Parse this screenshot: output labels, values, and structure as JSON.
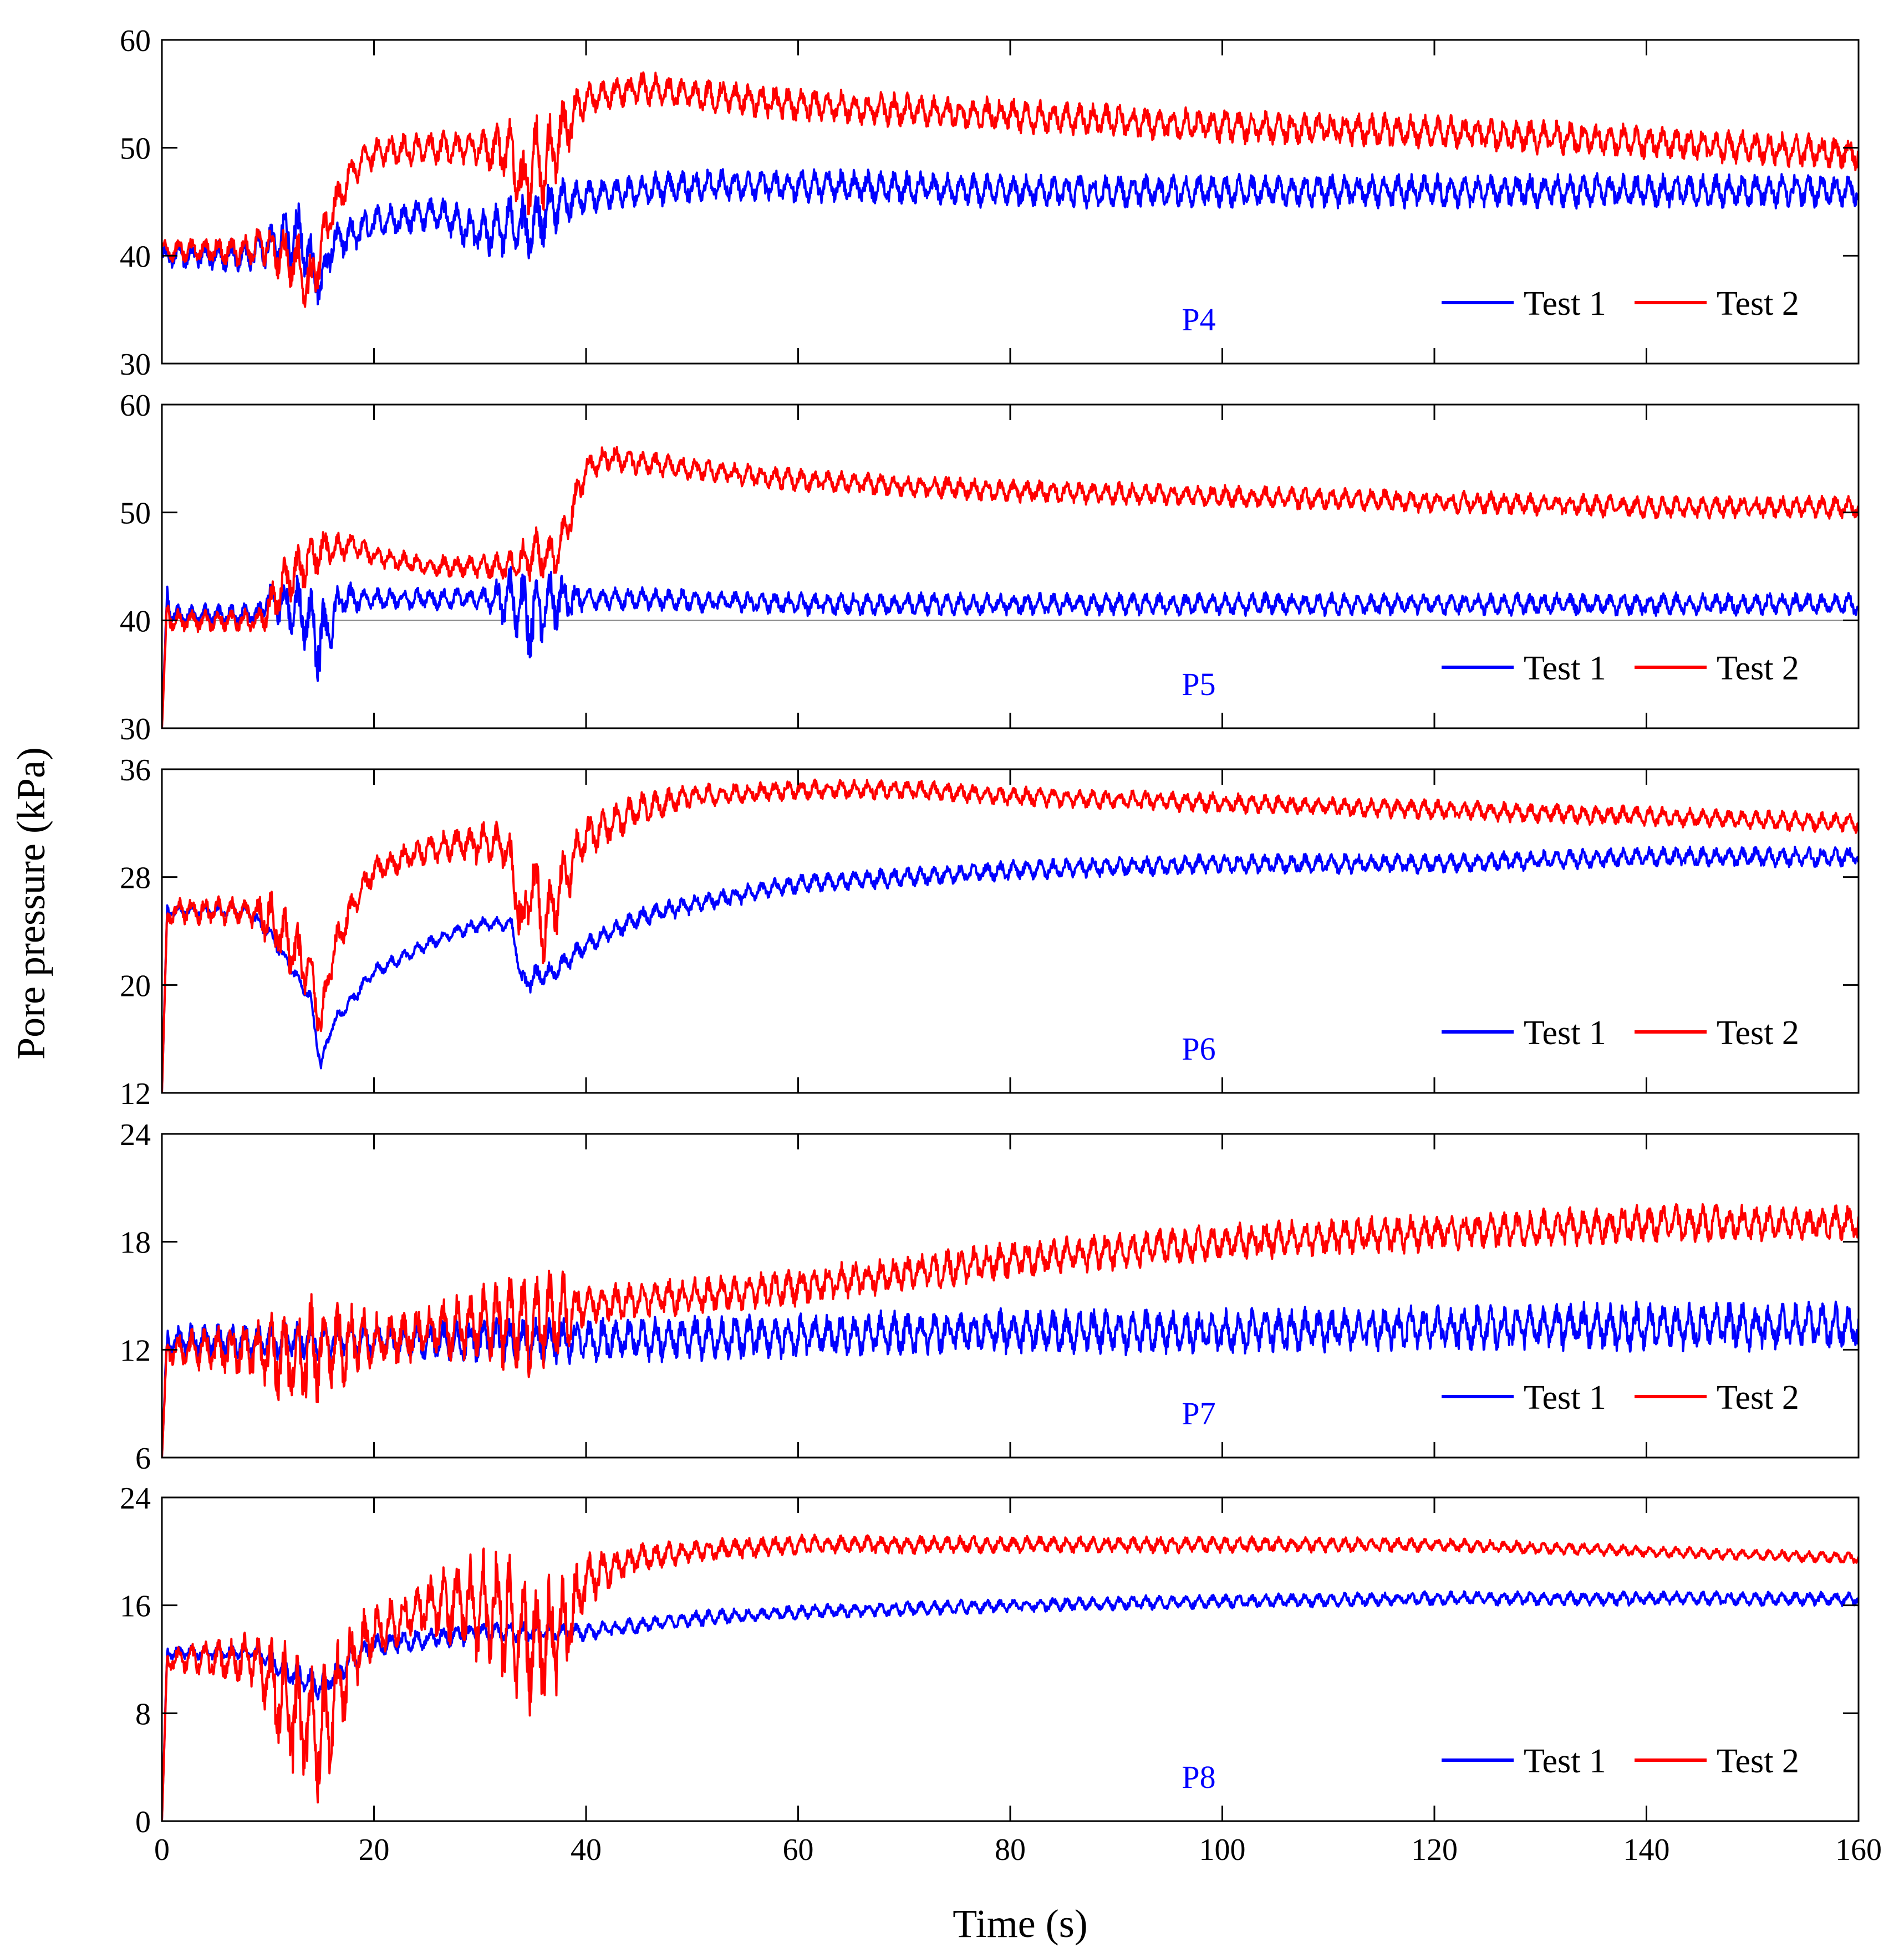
{
  "figure": {
    "ylabel": "Pore pressure (kPa)",
    "xlabel": "Time (s)"
  },
  "colors": {
    "test1": "#0000ff",
    "test2": "#ff0000",
    "panel_label": "#0000ff",
    "axis": "#000000"
  },
  "chart_data": [
    {
      "type": "line",
      "panel": "P4",
      "title": "P4",
      "xlabel": "",
      "ylabel": "",
      "xlim": [
        0,
        160
      ],
      "ylim": [
        30,
        60
      ],
      "xticks": [
        0,
        20,
        40,
        60,
        80,
        100,
        120,
        140,
        160
      ],
      "yticks": [
        30,
        40,
        50,
        60
      ],
      "legend": "bottom-right",
      "series": [
        {
          "name": "Test 1",
          "x": [
            0,
            8,
            10,
            13,
            15,
            16,
            20,
            26,
            30,
            33,
            34,
            35,
            36,
            38,
            40,
            45,
            50,
            60,
            80,
            100,
            120,
            140,
            160
          ],
          "values": [
            40,
            40,
            41,
            42,
            37,
            41,
            43,
            44,
            42,
            43,
            42,
            43,
            44,
            45,
            45.5,
            46,
            46.5,
            46.5,
            46,
            46,
            46,
            46,
            46
          ],
          "osc_amp": [
            1,
            1.5,
            2,
            3,
            2,
            2,
            1.5,
            1.5,
            2,
            3,
            4,
            3,
            3,
            2,
            1.5,
            1.5,
            1.5,
            1.5,
            1.5,
            1.5,
            1.5,
            1.5,
            1.5
          ]
        },
        {
          "name": "Test 2",
          "x": [
            0,
            8,
            10,
            13,
            14,
            16,
            18,
            20,
            25,
            30,
            33,
            34,
            35,
            36,
            38,
            40,
            45,
            50,
            60,
            80,
            100,
            120,
            140,
            160
          ],
          "values": [
            40.5,
            40.5,
            41,
            39,
            37,
            44,
            48,
            49.5,
            50,
            50,
            49.5,
            46,
            49,
            48,
            52,
            54.5,
            55.5,
            55,
            54,
            53,
            52,
            51.5,
            50.5,
            49.5
          ],
          "osc_amp": [
            1,
            1.5,
            2,
            3,
            3,
            2,
            1.5,
            1.5,
            1.5,
            1.5,
            3,
            4,
            4,
            4,
            3,
            1.5,
            1.5,
            1.5,
            1.5,
            1.5,
            1.5,
            1.5,
            1.5,
            1.5
          ]
        }
      ]
    },
    {
      "type": "line",
      "panel": "P5",
      "title": "P5",
      "xlabel": "",
      "ylabel": "",
      "xlim": [
        0,
        160
      ],
      "ylim": [
        30,
        60
      ],
      "xticks": [
        0,
        20,
        40,
        60,
        80,
        100,
        120,
        140,
        160
      ],
      "yticks": [
        30,
        40,
        50,
        60
      ],
      "reference_line": 40,
      "legend": "bottom-right",
      "series": [
        {
          "name": "Test 1",
          "x": [
            0,
            0.5,
            1,
            9,
            10,
            13,
            15,
            17,
            20,
            30,
            33,
            35,
            37,
            40,
            45,
            60,
            80,
            100,
            120,
            140,
            160
          ],
          "values": [
            30,
            42,
            40.5,
            40.5,
            42,
            41,
            38,
            42,
            42,
            42,
            42,
            40,
            42,
            42,
            42,
            41.5,
            41.5,
            41.5,
            41.5,
            41.5,
            41.5
          ],
          "osc_amp": [
            0,
            1.5,
            1,
            1,
            1.5,
            3,
            4,
            1.5,
            1,
            1,
            3,
            4,
            3,
            1,
            1,
            1,
            1,
            1,
            1,
            1,
            1
          ]
        },
        {
          "name": "Test 2",
          "x": [
            0,
            0.5,
            1,
            9,
            10,
            12,
            15,
            18,
            20,
            25,
            30,
            33,
            35,
            37,
            38,
            40,
            42,
            50,
            60,
            80,
            100,
            120,
            140,
            160
          ],
          "values": [
            30,
            41,
            40,
            40,
            41,
            44,
            46.5,
            47,
            46,
            45,
            45,
            45,
            46,
            46,
            48,
            54,
            55,
            54,
            53,
            52,
            51.5,
            51,
            50.5,
            50.5
          ],
          "osc_amp": [
            0,
            1.5,
            1,
            1,
            2,
            2.5,
            2,
            1,
            1,
            1,
            1,
            1.5,
            2.5,
            2,
            2,
            1.2,
            1.2,
            1,
            1,
            1,
            1,
            1,
            1,
            1
          ]
        }
      ]
    },
    {
      "type": "line",
      "panel": "P6",
      "title": "P6",
      "xlabel": "",
      "ylabel": "",
      "xlim": [
        0,
        160
      ],
      "ylim": [
        12,
        36
      ],
      "xticks": [
        0,
        20,
        40,
        60,
        80,
        100,
        120,
        140,
        160
      ],
      "yticks": [
        12,
        20,
        28,
        36
      ],
      "legend": "bottom-right",
      "series": [
        {
          "name": "Test 1",
          "x": [
            0,
            0.5,
            1,
            8,
            10,
            12,
            14,
            15,
            16,
            18,
            20,
            25,
            28,
            30,
            33,
            34,
            35,
            37,
            40,
            45,
            50,
            60,
            70,
            80,
            100,
            120,
            140,
            160
          ],
          "values": [
            12,
            25.5,
            25.5,
            25.5,
            24,
            21.5,
            19,
            14,
            17,
            19,
            21,
            23,
            24,
            24.5,
            24.5,
            20,
            20.5,
            21,
            23,
            25,
            26,
            27.5,
            28,
            28.5,
            29,
            29,
            29.5,
            29.5
          ],
          "osc_amp": [
            0,
            0.5,
            0.5,
            0.5,
            0.5,
            0.5,
            0.5,
            0.5,
            0.5,
            0.5,
            0.5,
            0.5,
            0.5,
            0.5,
            0.5,
            1,
            1,
            0.8,
            0.7,
            0.7,
            0.7,
            0.7,
            0.7,
            0.7,
            0.7,
            0.7,
            0.7,
            0.7
          ]
        },
        {
          "name": "Test 2",
          "x": [
            0,
            0.5,
            1,
            8,
            10,
            12,
            14,
            15,
            16,
            18,
            20,
            25,
            28,
            30,
            32,
            33,
            34,
            35,
            36,
            38,
            40,
            45,
            50,
            60,
            70,
            80,
            100,
            120,
            140,
            160
          ],
          "values": [
            12,
            25,
            25.5,
            25.5,
            25,
            23,
            21,
            17,
            22,
            26,
            28.5,
            30,
            30.5,
            30.5,
            30.5,
            29,
            24,
            28,
            24,
            28,
            31,
            33,
            34,
            34.5,
            34.5,
            34,
            33.5,
            33,
            32.5,
            32
          ],
          "osc_amp": [
            0,
            1,
            1,
            1,
            2,
            2.5,
            2,
            1.5,
            1.5,
            1,
            1,
            1,
            1.2,
            1.5,
            1.5,
            2,
            3,
            2.5,
            3,
            2.5,
            1.5,
            1.2,
            0.8,
            0.7,
            0.7,
            0.7,
            0.7,
            0.7,
            0.7,
            0.7
          ]
        }
      ]
    },
    {
      "type": "line",
      "panel": "P7",
      "title": "P7",
      "xlabel": "",
      "ylabel": "",
      "xlim": [
        0,
        160
      ],
      "ylim": [
        6,
        24
      ],
      "xticks": [
        0,
        20,
        40,
        60,
        80,
        100,
        120,
        140,
        160
      ],
      "yticks": [
        6,
        12,
        18,
        24
      ],
      "legend": "bottom-right",
      "series": [
        {
          "name": "Test 1",
          "x": [
            0,
            0.5,
            1,
            10,
            20,
            30,
            40,
            60,
            80,
            100,
            120,
            140,
            160
          ],
          "values": [
            6,
            12.5,
            12.5,
            12.5,
            12.5,
            12.5,
            12.5,
            12.8,
            13,
            13,
            13.2,
            13.3,
            13.3
          ],
          "osc_amp": [
            0,
            1,
            1,
            1,
            1,
            1.2,
            1.2,
            1.2,
            1.2,
            1.2,
            1.2,
            1.3,
            1.3
          ]
        },
        {
          "name": "Test 2",
          "x": [
            0,
            0.5,
            1,
            9,
            12,
            15,
            18,
            20,
            25,
            30,
            35,
            38,
            40,
            50,
            60,
            80,
            100,
            120,
            140,
            160
          ],
          "values": [
            6,
            12,
            12,
            12,
            11.5,
            12,
            12.5,
            12.5,
            13,
            13.5,
            13.5,
            14,
            14.5,
            15,
            15.5,
            17,
            18,
            18.5,
            19,
            19
          ],
          "osc_amp": [
            0,
            1,
            1,
            1.5,
            3,
            3,
            2,
            1.5,
            1.5,
            2,
            3,
            2.5,
            1,
            1,
            1,
            1,
            1,
            1,
            1,
            1
          ]
        }
      ]
    },
    {
      "type": "line",
      "panel": "P8",
      "title": "P8",
      "xlabel": "",
      "ylabel": "",
      "xlim": [
        0,
        160
      ],
      "ylim": [
        0,
        24
      ],
      "xticks": [
        0,
        20,
        40,
        60,
        80,
        100,
        120,
        140,
        160
      ],
      "yticks": [
        0,
        8,
        16,
        24
      ],
      "legend": "bottom-right",
      "series": [
        {
          "name": "Test 1",
          "x": [
            0,
            0.5,
            1,
            9,
            12,
            15,
            18,
            20,
            30,
            40,
            50,
            60,
            80,
            100,
            120,
            140,
            160
          ],
          "values": [
            0,
            12.5,
            12.5,
            12.5,
            11,
            10,
            12,
            13,
            14,
            14,
            15,
            15.5,
            16,
            16.3,
            16.5,
            16.5,
            16.5
          ],
          "osc_amp": [
            0,
            0.5,
            0.5,
            0.5,
            1,
            1,
            1,
            0.8,
            0.8,
            0.6,
            0.6,
            0.5,
            0.5,
            0.5,
            0.5,
            0.5,
            0.5
          ]
        },
        {
          "name": "Test 2",
          "x": [
            0,
            0.5,
            1,
            9,
            12,
            15,
            18,
            20,
            25,
            30,
            33,
            35,
            38,
            40,
            45,
            50,
            60,
            80,
            100,
            120,
            140,
            160
          ],
          "values": [
            0,
            12,
            12,
            12,
            8,
            6,
            12,
            14,
            16,
            16,
            15,
            13,
            14,
            18,
            19.5,
            20,
            20.5,
            20.5,
            20.5,
            20.5,
            20,
            19.5
          ],
          "osc_amp": [
            0,
            0.8,
            0.8,
            2,
            5,
            5,
            3,
            2,
            2,
            4,
            5,
            5,
            4,
            2,
            1,
            0.8,
            0.7,
            0.6,
            0.6,
            0.5,
            0.4,
            0.4
          ]
        }
      ]
    }
  ]
}
